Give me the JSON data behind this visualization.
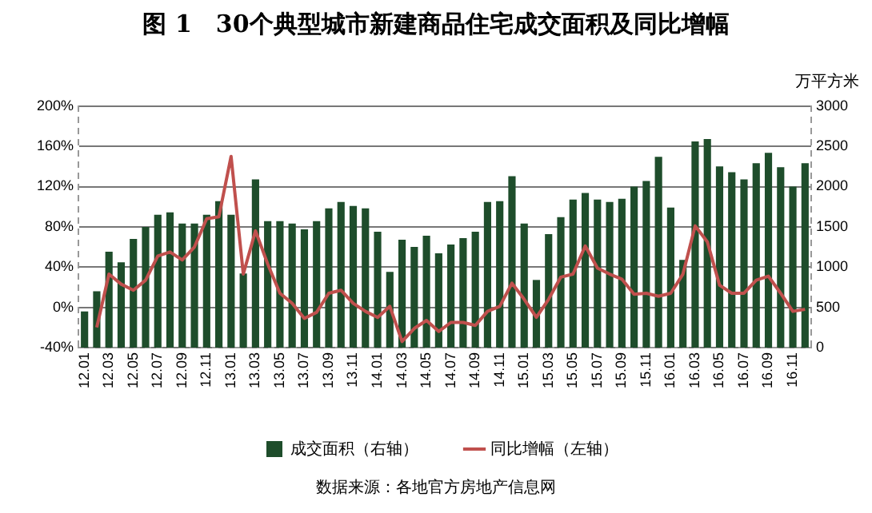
{
  "chart_data": {
    "type": "bar",
    "title": "图 1　30个典型城市新建商品住宅成交面积及同比增幅",
    "y2label": "万平方米",
    "categories": [
      "12.01",
      null,
      "12.03",
      null,
      "12.05",
      null,
      "12.07",
      null,
      "12.09",
      null,
      "12.11",
      null,
      "13.01",
      null,
      "13.03",
      null,
      "13.05",
      null,
      "13.07",
      null,
      "13.09",
      null,
      "13.11",
      null,
      "14.01",
      null,
      "14.03",
      null,
      "14.05",
      null,
      "14.07",
      null,
      "14.09",
      null,
      "14.11",
      null,
      "15.01",
      null,
      "15.03",
      null,
      "15.05",
      null,
      "15.07",
      null,
      "15.09",
      null,
      "15.11",
      null,
      "16.01",
      null,
      "16.03",
      null,
      "16.05",
      null,
      "16.07",
      null,
      "16.09",
      null,
      "16.11",
      null
    ],
    "series": [
      {
        "name": "成交面积（右轴）",
        "axis": "y2",
        "color": "#1e4d2b",
        "values": [
          450,
          700,
          1190,
          1060,
          1350,
          1500,
          1650,
          1680,
          1540,
          1540,
          1650,
          1820,
          1650,
          920,
          2090,
          1570,
          1570,
          1540,
          1470,
          1570,
          1730,
          1810,
          1760,
          1730,
          1440,
          940,
          1340,
          1250,
          1390,
          1170,
          1280,
          1360,
          1440,
          1810,
          1820,
          2130,
          1540,
          840,
          1410,
          1620,
          1840,
          1920,
          1840,
          1810,
          1850,
          2000,
          2070,
          2370,
          1740,
          1090,
          2560,
          2590,
          2250,
          2180,
          2090,
          2290,
          2420,
          2240,
          2000,
          2290
        ]
      },
      {
        "name": "同比增幅（左轴）",
        "type": "line",
        "axis": "y",
        "color": "#c0504d",
        "values": [
          null,
          -20,
          33,
          23,
          17,
          27,
          51,
          55,
          47,
          60,
          88,
          90,
          150,
          33,
          76,
          43,
          14,
          4,
          -11,
          -5,
          14,
          17,
          4,
          -4,
          -10,
          1,
          -34,
          -21,
          -13,
          -24,
          -15,
          -15,
          -18,
          -4,
          1,
          24,
          8,
          -10,
          8,
          30,
          33,
          61,
          39,
          33,
          28,
          13,
          14,
          11,
          14,
          33,
          81,
          65,
          22,
          14,
          14,
          27,
          31,
          14,
          -4,
          -2
        ]
      }
    ],
    "ylim": [
      -40,
      200
    ],
    "yticks": [
      {
        "value": -40,
        "label": "-40%"
      },
      {
        "value": 0,
        "label": "0%"
      },
      {
        "value": 40,
        "label": "40%"
      },
      {
        "value": 80,
        "label": "80%"
      },
      {
        "value": 120,
        "label": "120%"
      },
      {
        "value": 160,
        "label": "160%"
      },
      {
        "value": 200,
        "label": "200%"
      }
    ],
    "y2lim": [
      0,
      3000
    ],
    "y2ticks": [
      0,
      500,
      1000,
      1500,
      2000,
      2500,
      3000
    ],
    "grid": "y",
    "legend": "bottom",
    "marker": "none",
    "line_style": "solid",
    "annotations": [
      "数据来源：各地官方房地产信息网"
    ]
  }
}
